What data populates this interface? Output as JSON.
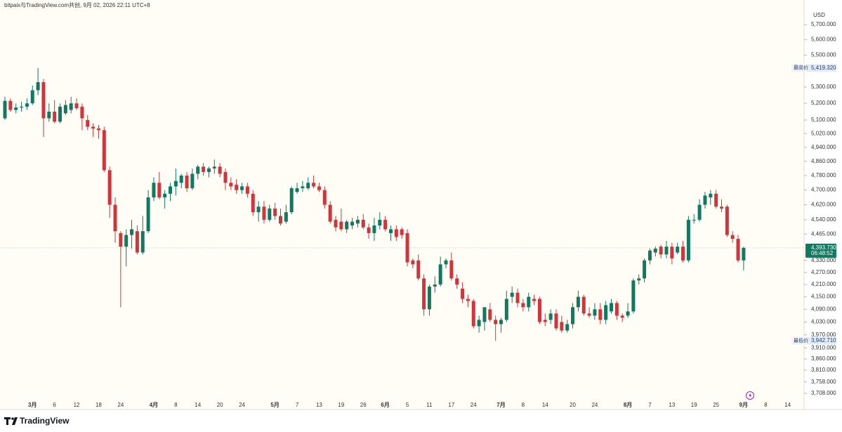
{
  "header": "bitpaix与TradingView.com共创, 9月 02, 2026 22:11 UTC+8",
  "brand": "TradingView",
  "chart_data": {
    "type": "candlestick",
    "currency": "USD",
    "log_scale": true,
    "up_color": "#0f7a60",
    "down_color": "#d0353b",
    "background": "#fffdf5",
    "ylim": [
      3648,
      5818
    ],
    "yticks": [
      {
        "value": 5700,
        "label": "5,700.000"
      },
      {
        "value": 5600,
        "label": "5,600.000"
      },
      {
        "value": 5500,
        "label": "5,500.000"
      },
      {
        "value": 5300,
        "label": "5,300.000"
      },
      {
        "value": 5200,
        "label": "5,200.000"
      },
      {
        "value": 5100,
        "label": "5,100.000"
      },
      {
        "value": 5020,
        "label": "5,020.000"
      },
      {
        "value": 4940,
        "label": "4,940.000"
      },
      {
        "value": 4860,
        "label": "4,860.000"
      },
      {
        "value": 4780,
        "label": "4,780.000"
      },
      {
        "value": 4700,
        "label": "4,700.000"
      },
      {
        "value": 4620,
        "label": "4,620.000"
      },
      {
        "value": 4540,
        "label": "4,540.000"
      },
      {
        "value": 4465,
        "label": "4,465.000"
      },
      {
        "value": 4330,
        "label": "4,330.000"
      },
      {
        "value": 4270,
        "label": "4,270.000"
      },
      {
        "value": 4210,
        "label": "4,210.000"
      },
      {
        "value": 4150,
        "label": "4,150.000"
      },
      {
        "value": 4090,
        "label": "4,090.000"
      },
      {
        "value": 4030,
        "label": "4,030.000"
      },
      {
        "value": 3970,
        "label": "3,970.000"
      },
      {
        "value": 3910,
        "label": "3,910.000"
      },
      {
        "value": 3860,
        "label": "3,860.000"
      },
      {
        "value": 3810,
        "label": "3,810.000"
      },
      {
        "value": 3758,
        "label": "3,758.000"
      },
      {
        "value": 3708,
        "label": "3,708.000"
      }
    ],
    "high_label": {
      "name": "最高价",
      "label": "5,419.320"
    },
    "low_label": {
      "name": "最低价",
      "label": "3,942.710"
    },
    "last_label": "4,393.730",
    "countdown": "06:48:52",
    "future_labels": [
      "8",
      "14"
    ],
    "categories": [
      null,
      null,
      null,
      null,
      null,
      "3月",
      null,
      null,
      null,
      "6",
      null,
      null,
      null,
      "12",
      null,
      null,
      null,
      "18",
      null,
      null,
      null,
      "24",
      null,
      null,
      null,
      null,
      null,
      "4月",
      null,
      null,
      null,
      "8",
      null,
      null,
      null,
      "14",
      null,
      null,
      null,
      "20",
      null,
      null,
      null,
      "24",
      null,
      null,
      null,
      null,
      null,
      "5月",
      null,
      null,
      null,
      "7",
      null,
      null,
      null,
      "13",
      null,
      null,
      null,
      "19",
      null,
      null,
      null,
      "26",
      null,
      null,
      null,
      "6月",
      null,
      null,
      null,
      "5",
      null,
      null,
      null,
      "11",
      null,
      null,
      null,
      "17",
      null,
      null,
      null,
      "24",
      null,
      null,
      null,
      null,
      "7月",
      null,
      null,
      null,
      "8",
      null,
      null,
      null,
      "14",
      null,
      null,
      null,
      null,
      "20",
      null,
      null,
      null,
      "24",
      null,
      null,
      null,
      null,
      null,
      "8月",
      null,
      null,
      null,
      "7",
      null,
      null,
      null,
      "13",
      null,
      null,
      null,
      "19",
      null,
      null,
      null,
      "25",
      null,
      null,
      null,
      null,
      "9月"
    ],
    "open": [
      5110,
      5215,
      5160,
      5175,
      5180,
      5200,
      5280,
      5330,
      5110,
      5150,
      5090,
      5140,
      5160,
      5200,
      5180,
      5100,
      5060,
      5050,
      5040,
      4810,
      4620,
      4470,
      4400,
      4460,
      4480,
      4370,
      4480,
      4660,
      4740,
      4660,
      4680,
      4720,
      4740,
      4780,
      4710,
      4790,
      4830,
      4800,
      4820,
      4830,
      4800,
      4740,
      4730,
      4700,
      4720,
      4680,
      4580,
      4610,
      4540,
      4600,
      4560,
      4530,
      4580,
      4690,
      4710,
      4710,
      4740,
      4720,
      4700,
      4620,
      4540,
      4530,
      4490,
      4510,
      4520,
      4540,
      4500,
      4470,
      4510,
      4540,
      4470,
      4490,
      4490,
      4470,
      4330,
      4330,
      4240,
      4090,
      4200,
      4210,
      4310,
      4330,
      4240,
      4190,
      4140,
      4130,
      4010,
      4030,
      4090,
      4040,
      4020,
      4040,
      4150,
      4170,
      4120,
      4100,
      4140,
      4140,
      4040,
      4040,
      4070,
      4030,
      3990,
      4020,
      4100,
      4150,
      4070,
      4060,
      4090,
      4040,
      4080,
      4120,
      4060,
      4060,
      4080,
      4230,
      4240,
      4330,
      4370,
      4400,
      4360,
      4400,
      4370,
      4400,
      4330,
      4540,
      4540,
      4620,
      4660,
      4680,
      4610,
      4610,
      4460,
      4440,
      4330
    ],
    "high": [
      5240,
      5230,
      5200,
      5210,
      5230,
      5310,
      5419.32,
      5350,
      5200,
      5220,
      5200,
      5220,
      5240,
      5230,
      5200,
      5130,
      5080,
      5070,
      5060,
      4830,
      4660,
      4480,
      4490,
      4540,
      4510,
      4560,
      4700,
      4770,
      4800,
      4700,
      4740,
      4820,
      4790,
      4800,
      4820,
      4840,
      4850,
      4830,
      4870,
      4850,
      4820,
      4770,
      4760,
      4740,
      4740,
      4700,
      4640,
      4640,
      4620,
      4630,
      4600,
      4620,
      4720,
      4740,
      4750,
      4770,
      4780,
      4740,
      4720,
      4640,
      4560,
      4600,
      4540,
      4550,
      4560,
      4570,
      4520,
      4550,
      4580,
      4560,
      4510,
      4510,
      4500,
      4490,
      4340,
      4360,
      4260,
      4210,
      4250,
      4350,
      4340,
      4370,
      4260,
      4220,
      4160,
      4140,
      4060,
      4100,
      4120,
      4060,
      4050,
      4180,
      4200,
      4190,
      4140,
      4170,
      4160,
      4150,
      4070,
      4090,
      4090,
      4060,
      4040,
      4120,
      4180,
      4160,
      4100,
      4120,
      4120,
      4130,
      4140,
      4130,
      4070,
      4120,
      4240,
      4260,
      4340,
      4390,
      4400,
      4410,
      4430,
      4420,
      4420,
      4430,
      4560,
      4570,
      4650,
      4690,
      4700,
      4700,
      4650,
      4620,
      4480,
      4460,
      4400
    ],
    "low": [
      5100,
      5150,
      5140,
      5150,
      5160,
      5190,
      5250,
      5000,
      5090,
      5080,
      5080,
      5130,
      5140,
      5160,
      5040,
      5040,
      5000,
      4990,
      4800,
      4550,
      4420,
      4100,
      4300,
      4390,
      4360,
      4360,
      4470,
      4640,
      4650,
      4600,
      4640,
      4670,
      4710,
      4690,
      4700,
      4760,
      4780,
      4770,
      4790,
      4770,
      4700,
      4700,
      4680,
      4680,
      4660,
      4560,
      4530,
      4520,
      4530,
      4540,
      4510,
      4520,
      4570,
      4680,
      4690,
      4700,
      4710,
      4690,
      4600,
      4520,
      4480,
      4480,
      4470,
      4490,
      4500,
      4490,
      4440,
      4430,
      4490,
      4480,
      4430,
      4430,
      4440,
      4300,
      4290,
      4230,
      4060,
      4060,
      4170,
      4200,
      4290,
      4230,
      4190,
      4120,
      4100,
      4000,
      3980,
      3990,
      4030,
      3942.71,
      3980,
      4030,
      4120,
      4100,
      4080,
      4080,
      4110,
      4020,
      4010,
      4020,
      3990,
      3980,
      3980,
      4000,
      4080,
      4060,
      4050,
      4040,
      4020,
      4020,
      4070,
      4040,
      4030,
      4050,
      4070,
      4210,
      4220,
      4310,
      4350,
      4340,
      4340,
      4310,
      4360,
      4320,
      4320,
      4520,
      4530,
      4600,
      4620,
      4600,
      4580,
      4450,
      4420,
      4320,
      4280
    ],
    "close": [
      5215,
      5160,
      5175,
      5180,
      5200,
      5280,
      5330,
      5110,
      5150,
      5090,
      5180,
      5190,
      5200,
      5170,
      5110,
      5060,
      5050,
      5040,
      4810,
      4620,
      4480,
      4400,
      4460,
      4490,
      4370,
      4480,
      4660,
      4740,
      4660,
      4680,
      4720,
      4750,
      4780,
      4710,
      4790,
      4830,
      4800,
      4820,
      4830,
      4790,
      4740,
      4720,
      4700,
      4720,
      4680,
      4580,
      4610,
      4540,
      4600,
      4560,
      4520,
      4580,
      4710,
      4710,
      4720,
      4740,
      4720,
      4700,
      4620,
      4530,
      4500,
      4490,
      4530,
      4530,
      4540,
      4500,
      4470,
      4510,
      4540,
      4490,
      4490,
      4450,
      4460,
      4320,
      4310,
      4240,
      4090,
      4200,
      4210,
      4310,
      4330,
      4240,
      4210,
      4140,
      4130,
      4010,
      4040,
      4100,
      4040,
      4020,
      4040,
      4140,
      4170,
      4120,
      4100,
      4150,
      4130,
      4030,
      4030,
      4070,
      4000,
      3990,
      4020,
      4100,
      4150,
      4070,
      4060,
      4090,
      4040,
      4110,
      4120,
      4060,
      4050,
      4080,
      4230,
      4240,
      4330,
      4380,
      4390,
      4360,
      4400,
      4340,
      4400,
      4330,
      4540,
      4540,
      4620,
      4670,
      4680,
      4610,
      4600,
      4460,
      4440,
      4330,
      4393.73
    ]
  }
}
